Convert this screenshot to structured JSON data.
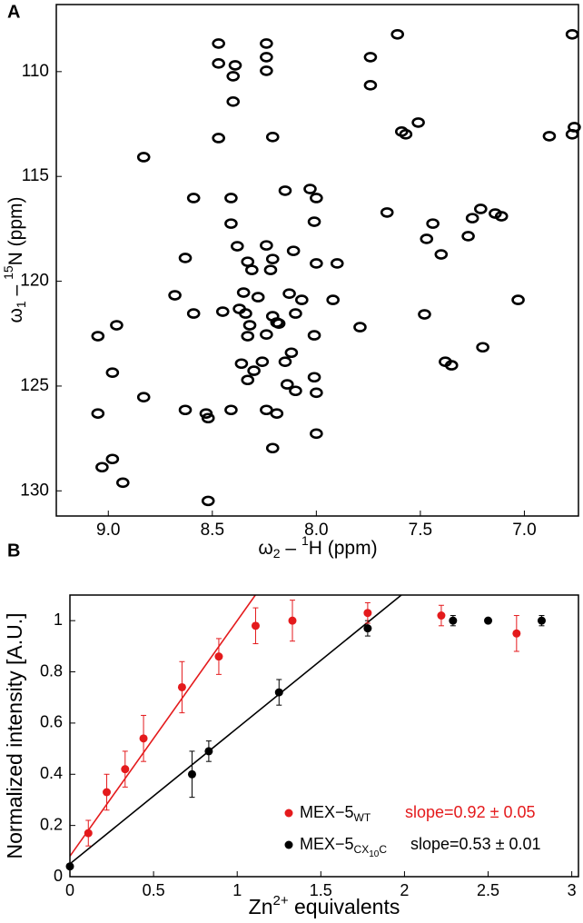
{
  "chart_data": [
    {
      "type": "scatter",
      "panel": "A",
      "xlabel": [
        "ω",
        "2",
        " – ",
        "1",
        "H (ppm)"
      ],
      "ylabel": [
        "ω",
        "1",
        " – ",
        "15",
        "N (ppm)"
      ],
      "xlim": [
        9.25,
        6.74
      ],
      "ylim": [
        131.2,
        106.8
      ],
      "xticks": [
        {
          "value": 9,
          "label": "9.0"
        },
        {
          "value": 8.5,
          "label": "8.5"
        },
        {
          "value": 8,
          "label": "8.0"
        },
        {
          "value": 7.5,
          "label": "7.5"
        },
        {
          "value": 7,
          "label": "7.0"
        }
      ],
      "yticks": [
        110,
        115,
        120,
        125,
        130
      ],
      "color": "#000000",
      "x": [
        8.47,
        8.24,
        7.61,
        6.77,
        8.47,
        8.39,
        8.24,
        7.74,
        8.24,
        8.4,
        7.74,
        8.4,
        7.51,
        7.57,
        7.59,
        6.76,
        6.88,
        6.77,
        8.47,
        8.21,
        8.83,
        8.59,
        8.41,
        8.15,
        8.03,
        8.0,
        7.14,
        7.21,
        7.11,
        7.25,
        7.66,
        8.41,
        8.01,
        7.44,
        8.38,
        8.24,
        8.11,
        8.21,
        7.47,
        7.27,
        7.4,
        8.63,
        8.0,
        8.33,
        7.9,
        8.31,
        8.22,
        8.68,
        8.35,
        8.28,
        8.37,
        8.13,
        8.07,
        7.92,
        7.03,
        8.59,
        8.45,
        8.34,
        8.21,
        8.1,
        8.18,
        9.05,
        8.96,
        8.32,
        8.19,
        7.79,
        7.48,
        8.33,
        8.24,
        8.12,
        8.01,
        7.2,
        8.98,
        8.15,
        8.36,
        8.26,
        8.3,
        7.35,
        7.38,
        8.01,
        8.83,
        8.33,
        8.14,
        8.1,
        8.0,
        8.63,
        8.53,
        8.41,
        8.52,
        8.24,
        8.19,
        8.0,
        9.05,
        8.21,
        8.98,
        9.03,
        8.93,
        8.52
      ],
      "y": [
        108.66,
        108.66,
        108.22,
        108.22,
        109.61,
        109.7,
        109.31,
        109.31,
        109.96,
        110.22,
        110.65,
        111.43,
        112.43,
        112.99,
        112.86,
        112.65,
        113.08,
        112.99,
        113.17,
        113.12,
        114.08,
        116.03,
        116.03,
        115.68,
        115.6,
        116.03,
        116.77,
        116.55,
        116.9,
        116.99,
        116.72,
        117.25,
        117.16,
        117.25,
        118.33,
        118.29,
        118.55,
        118.94,
        117.98,
        117.85,
        118.72,
        118.89,
        119.15,
        119.07,
        119.15,
        119.46,
        119.46,
        120.67,
        120.54,
        120.76,
        121.32,
        120.59,
        120.89,
        120.89,
        120.89,
        121.54,
        121.45,
        121.54,
        121.67,
        121.54,
        122.02,
        122.62,
        122.1,
        122.1,
        121.97,
        122.19,
        121.58,
        122.62,
        122.54,
        123.41,
        122.58,
        123.15,
        124.36,
        123.84,
        123.93,
        123.84,
        124.27,
        124.01,
        123.84,
        124.58,
        125.53,
        124.71,
        124.92,
        125.23,
        125.32,
        126.14,
        126.31,
        126.14,
        126.53,
        126.14,
        126.31,
        127.27,
        126.31,
        127.96,
        128.48,
        128.87,
        129.61,
        130.48
      ]
    },
    {
      "type": "errorbar",
      "panel": "B",
      "xlabel": [
        "Zn",
        "2+",
        " equivalents"
      ],
      "ylabel": "Normalized intensity [A.U.]",
      "xlim": [
        0,
        3.04
      ],
      "ylim": [
        0,
        1.1
      ],
      "xticks": [
        0,
        0.5,
        1,
        1.5,
        2,
        2.5,
        3
      ],
      "yticks": [
        0,
        0.2,
        0.4,
        0.6,
        0.8,
        1
      ],
      "series": [
        {
          "name": [
            "MEX−5",
            "WT"
          ],
          "color": "#e41a1c",
          "x": [
            0.11,
            0.22,
            0.33,
            0.44,
            0.67,
            0.89,
            1.11,
            1.33,
            1.78,
            2.22,
            2.67
          ],
          "values": [
            0.17,
            0.33,
            0.42,
            0.54,
            0.74,
            0.86,
            0.98,
            1.0,
            1.03,
            1.02,
            0.95
          ],
          "errors": [
            0.05,
            0.07,
            0.07,
            0.09,
            0.1,
            0.07,
            0.07,
            0.08,
            0.04,
            0.04,
            0.07
          ],
          "fit": {
            "slope": 0.92,
            "intercept": 0.08
          },
          "fit_label": "slope=0.92 ± 0.05"
        },
        {
          "name": [
            "MEX−5",
            "CX",
            "10",
            "C"
          ],
          "color": "#000000",
          "x": [
            0,
            0.73,
            0.83,
            1.25,
            1.78,
            2.29,
            2.5,
            2.82
          ],
          "values": [
            0.04,
            0.4,
            0.49,
            0.72,
            0.97,
            1.0,
            1.0,
            1.0
          ],
          "errors": [
            0.01,
            0.09,
            0.04,
            0.05,
            0.03,
            0.02,
            0.005,
            0.02
          ],
          "fit": {
            "slope": 0.53,
            "intercept": 0.05
          },
          "fit_label": "slope=0.53 ± 0.01"
        }
      ]
    }
  ]
}
